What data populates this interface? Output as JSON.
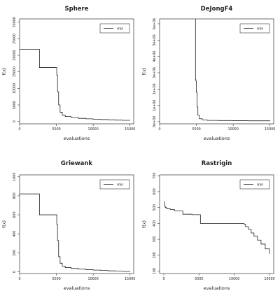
{
  "chart_data": [
    {
      "type": "line",
      "title": "Sphere",
      "xlabel": "evaluations",
      "ylabel": "f(x)",
      "xlim": [
        0,
        15500
      ],
      "ylim": [
        -700,
        31000
      ],
      "xticks": [
        0,
        5000,
        10000,
        15000
      ],
      "xtick_labels": [
        "0",
        "5000",
        "10000",
        "15000"
      ],
      "yticks": [
        0,
        5000,
        10000,
        15000,
        20000,
        25000,
        30000
      ],
      "ytick_labels": [
        "0",
        "5000",
        "10000",
        "15000",
        "20000",
        "25000",
        "30000"
      ],
      "step": true,
      "legend": "top-right",
      "series": [
        {
          "name": "min",
          "x": [
            0,
            2700,
            2700,
            5000,
            5050,
            5150,
            5300,
            5500,
            5800,
            6200,
            7000,
            8000,
            9000,
            10000,
            11000,
            12000,
            13000,
            14000,
            15000
          ],
          "y": [
            21800,
            21800,
            16300,
            16300,
            14000,
            9000,
            5000,
            2800,
            1900,
            1500,
            1200,
            950,
            800,
            680,
            580,
            500,
            420,
            350,
            300
          ]
        }
      ]
    },
    {
      "type": "line",
      "title": "DeJongF4",
      "xlabel": "evaluations",
      "ylabel": "f(x)",
      "xlim": [
        0,
        15500
      ],
      "ylim": [
        -130000.0,
        6300000.0
      ],
      "xticks": [
        0,
        5000,
        10000,
        15000
      ],
      "xtick_labels": [
        "0",
        "5000",
        "10000",
        "15000"
      ],
      "yticks": [
        0,
        1000000,
        2000000,
        3000000,
        4000000,
        5000000,
        6000000
      ],
      "ytick_labels": [
        "0e+00",
        "1e+06",
        "2e+06",
        "3e+06",
        "4e+06",
        "5e+06",
        "6e+06"
      ],
      "step": true,
      "legend": "top-right",
      "series": [
        {
          "name": "min",
          "x": [
            4880,
            4880,
            4920,
            5000,
            5100,
            5200,
            5400,
            5800,
            6500,
            8000,
            10000,
            12000,
            15000
          ],
          "y": [
            6300000,
            2600000,
            2500000,
            1800000,
            900000,
            400000,
            180000,
            100000,
            80000,
            70000,
            60000,
            55000,
            50000
          ]
        }
      ]
    },
    {
      "type": "line",
      "title": "Griewank",
      "xlabel": "evaluations",
      "ylabel": "f(x)",
      "xlim": [
        0,
        15500
      ],
      "ylim": [
        -18,
        1020
      ],
      "xticks": [
        0,
        5000,
        10000,
        15000
      ],
      "xtick_labels": [
        "0",
        "5000",
        "10000",
        "15000"
      ],
      "yticks": [
        0,
        200,
        400,
        600,
        800,
        1000
      ],
      "ytick_labels": [
        "0",
        "200",
        "400",
        "600",
        "800",
        "1000"
      ],
      "step": true,
      "legend": "top-right",
      "series": [
        {
          "name": "min",
          "x": [
            0,
            2700,
            2700,
            5000,
            5050,
            5150,
            5300,
            5500,
            5800,
            6200,
            7000,
            8000,
            9000,
            10000,
            11000,
            12000,
            13000,
            14000,
            15000
          ],
          "y": [
            820,
            820,
            600,
            600,
            500,
            330,
            160,
            90,
            60,
            45,
            35,
            28,
            22,
            18,
            14,
            10,
            7,
            4,
            2
          ]
        }
      ]
    },
    {
      "type": "line",
      "title": "Rastrigin",
      "xlabel": "evaluations",
      "ylabel": "f(x)",
      "xlim": [
        -600,
        15600
      ],
      "ylim": [
        85,
        705
      ],
      "xticks": [
        0,
        5000,
        10000,
        15000
      ],
      "xtick_labels": [
        "0",
        "5000",
        "10000",
        "15000"
      ],
      "yticks": [
        100,
        200,
        300,
        400,
        500,
        600,
        700
      ],
      "ytick_labels": [
        "100",
        "200",
        "300",
        "400",
        "500",
        "600",
        "700"
      ],
      "step": true,
      "legend": "top-right",
      "series": [
        {
          "name": "min",
          "x": [
            0,
            100,
            200,
            400,
            900,
            1500,
            2700,
            4000,
            5200,
            8000,
            10000,
            11400,
            11600,
            12000,
            12400,
            12800,
            13300,
            13800,
            14400,
            15000
          ],
          "y": [
            535,
            510,
            500,
            492,
            488,
            478,
            458,
            455,
            400,
            400,
            400,
            395,
            380,
            362,
            340,
            320,
            295,
            270,
            240,
            210
          ]
        }
      ]
    }
  ]
}
